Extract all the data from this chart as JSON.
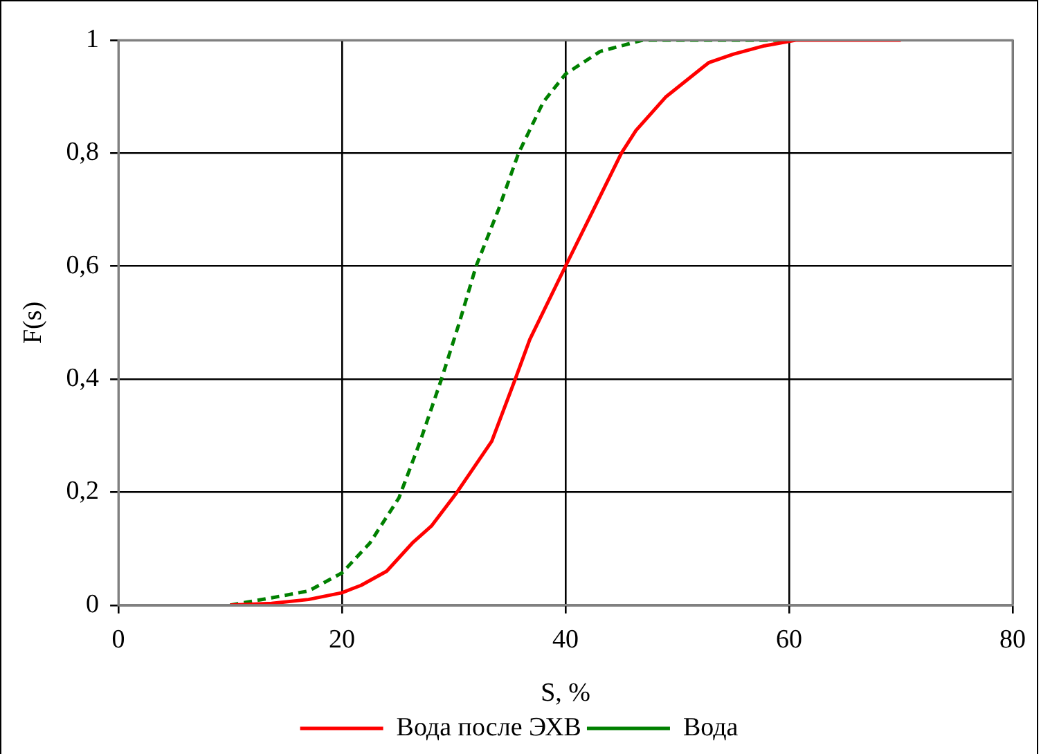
{
  "chart_data": {
    "type": "line",
    "xlabel": "S, %",
    "ylabel": "F(s)",
    "xlim": [
      0,
      80
    ],
    "xticks": [
      0,
      20,
      40,
      60,
      80
    ],
    "ylim": [
      0,
      1
    ],
    "yticks": [
      0,
      {
        "value": 0.2,
        "label": "0,2"
      },
      {
        "value": 0.4,
        "label": "0,4"
      },
      {
        "value": 0.6,
        "label": "0,6"
      },
      {
        "value": 0.8,
        "label": "0,8"
      },
      1
    ],
    "grid": true,
    "legend": "bottom",
    "marker": "none",
    "series": [
      {
        "name": "Вода после ЭХВ",
        "color": "#ff0000",
        "line_style": "solid",
        "x": [
          10,
          13.7,
          17,
          20,
          21.7,
          24,
          26.3,
          28,
          30.3,
          33.4,
          35.5,
          36.8,
          40,
          42.5,
          45,
          46.3,
          49,
          52.8,
          55,
          57.8,
          60.6,
          70
        ],
        "values": [
          0,
          0.003,
          0.01,
          0.022,
          0.035,
          0.06,
          0.11,
          0.14,
          0.2,
          0.29,
          0.4,
          0.47,
          0.6,
          0.7,
          0.8,
          0.84,
          0.9,
          0.96,
          0.975,
          0.99,
          1,
          1
        ]
      },
      {
        "name": "Вода",
        "color": "#008000",
        "line_style": "dashed",
        "x": [
          10,
          13.7,
          17,
          20,
          22.5,
          25.1,
          27,
          28.9,
          30.5,
          32,
          34,
          35.8,
          38,
          40,
          43.1,
          46.9,
          50,
          60
        ],
        "values": [
          0,
          0.013,
          0.025,
          0.057,
          0.11,
          0.19,
          0.29,
          0.4,
          0.5,
          0.6,
          0.7,
          0.8,
          0.89,
          0.94,
          0.98,
          1,
          1,
          1
        ]
      }
    ]
  }
}
